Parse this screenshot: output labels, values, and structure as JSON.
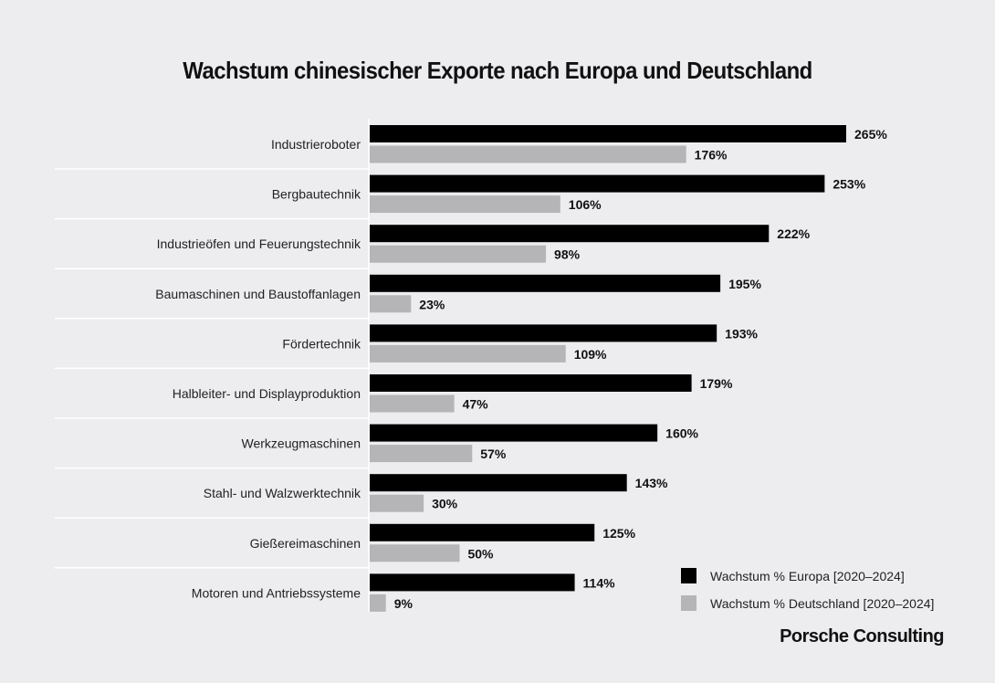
{
  "chart_data": {
    "type": "bar",
    "orientation": "horizontal",
    "title": "Wachstum chinesischer Exporte nach Europa und Deutschland",
    "categories": [
      "Industrieroboter",
      "Bergbautechnik",
      "Industrieöfen und Feuerungstechnik",
      "Baumaschinen und Baustoffanlagen",
      "Fördertechnik",
      "Halbleiter- und Displayproduktion",
      "Werkzeugmaschinen",
      "Stahl- und Walzwerktechnik",
      "Gießereimaschinen",
      "Motoren und Antriebssysteme"
    ],
    "series": [
      {
        "name": "Wachstum % Europa [2020–2024]",
        "color": "#000000",
        "values": [
          265,
          253,
          222,
          195,
          193,
          179,
          160,
          143,
          125,
          114
        ]
      },
      {
        "name": "Wachstum % Deutschland [2020–2024]",
        "color": "#b5b4b7",
        "values": [
          176,
          106,
          98,
          23,
          109,
          47,
          57,
          30,
          50,
          9
        ]
      }
    ],
    "value_suffix": "%",
    "xlim": [
      0,
      265
    ],
    "grid": false,
    "legend_position": "bottom-right"
  },
  "brand": "Porsche Consulting"
}
